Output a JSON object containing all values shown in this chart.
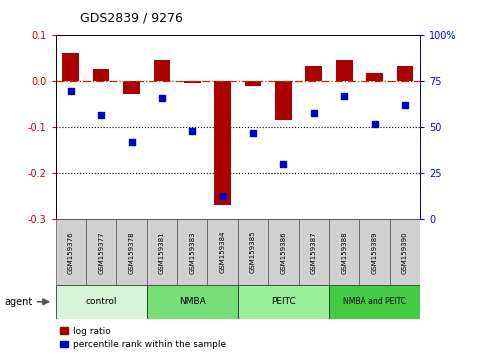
{
  "title": "GDS2839 / 9276",
  "samples": [
    "GSM159376",
    "GSM159377",
    "GSM159378",
    "GSM159381",
    "GSM159383",
    "GSM159384",
    "GSM159385",
    "GSM159386",
    "GSM159387",
    "GSM159388",
    "GSM159389",
    "GSM159390"
  ],
  "log_ratio": [
    0.062,
    0.027,
    -0.028,
    0.046,
    -0.004,
    -0.268,
    -0.01,
    -0.083,
    0.033,
    0.046,
    0.019,
    0.034
  ],
  "percentile_rank": [
    70,
    57,
    42,
    66,
    48,
    13,
    47,
    30,
    58,
    67,
    52,
    62
  ],
  "groups": [
    {
      "label": "control",
      "start": 0,
      "end": 3,
      "color": "#d6f5d6"
    },
    {
      "label": "NMBA",
      "start": 3,
      "end": 6,
      "color": "#77dd77"
    },
    {
      "label": "PEITC",
      "start": 6,
      "end": 9,
      "color": "#99ee99"
    },
    {
      "label": "NMBA and PEITC",
      "start": 9,
      "end": 12,
      "color": "#44cc44"
    }
  ],
  "ylim_left": [
    -0.3,
    0.1
  ],
  "ylim_right": [
    0,
    100
  ],
  "yticks_left": [
    -0.3,
    -0.2,
    -0.1,
    0.0,
    0.1
  ],
  "yticks_right": [
    0,
    25,
    50,
    75,
    100
  ],
  "bar_color": "#aa0000",
  "dot_color": "#0000cc",
  "figsize": [
    4.83,
    3.54
  ],
  "dpi": 100
}
